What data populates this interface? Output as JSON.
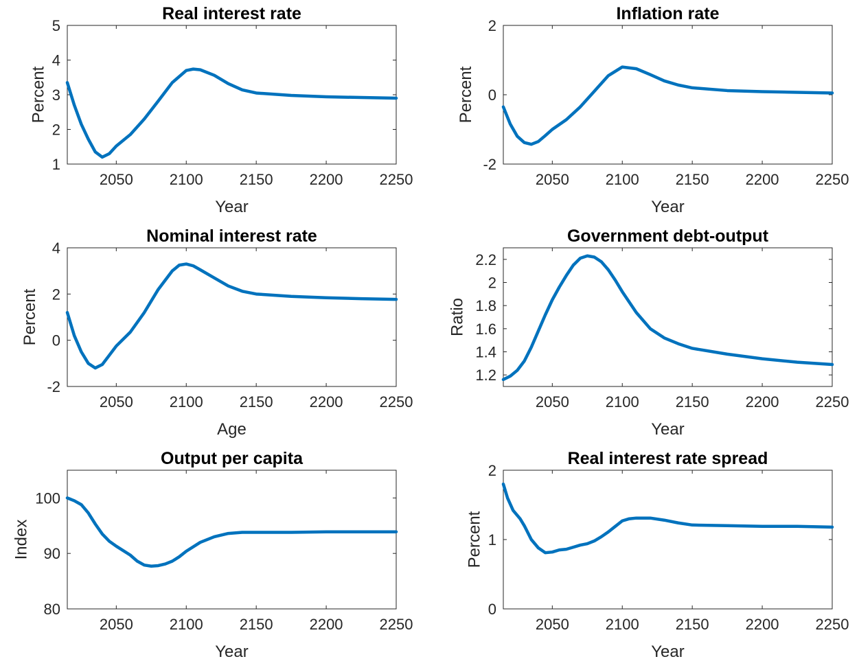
{
  "figure": {
    "line_color": "#0072BD"
  },
  "chart_data": [
    {
      "type": "line",
      "title": "Real interest rate",
      "xlabel": "Year",
      "ylabel": "Percent",
      "xlim": [
        2015,
        2250
      ],
      "ylim": [
        1,
        5
      ],
      "xticks": [
        2050,
        2100,
        2150,
        2200,
        2250
      ],
      "yticks": [
        1,
        2,
        3,
        4,
        5
      ],
      "grid": false,
      "series": [
        {
          "x": [
            2015,
            2020,
            2025,
            2030,
            2035,
            2040,
            2045,
            2050,
            2060,
            2070,
            2080,
            2090,
            2100,
            2105,
            2110,
            2120,
            2130,
            2140,
            2150,
            2175,
            2200,
            2225,
            2250
          ],
          "y": [
            3.35,
            2.7,
            2.15,
            1.72,
            1.35,
            1.2,
            1.3,
            1.52,
            1.85,
            2.3,
            2.82,
            3.35,
            3.7,
            3.74,
            3.72,
            3.56,
            3.32,
            3.14,
            3.05,
            2.98,
            2.94,
            2.92,
            2.9
          ]
        }
      ]
    },
    {
      "type": "line",
      "title": "Inflation rate",
      "xlabel": "Year",
      "ylabel": "Percent",
      "xlim": [
        2015,
        2250
      ],
      "ylim": [
        -2,
        2
      ],
      "xticks": [
        2050,
        2100,
        2150,
        2200,
        2250
      ],
      "yticks": [
        -2,
        0,
        2
      ],
      "grid": false,
      "series": [
        {
          "x": [
            2015,
            2020,
            2025,
            2030,
            2035,
            2040,
            2045,
            2050,
            2060,
            2070,
            2080,
            2090,
            2100,
            2110,
            2120,
            2130,
            2140,
            2150,
            2175,
            2200,
            2225,
            2250
          ],
          "y": [
            -0.35,
            -0.85,
            -1.2,
            -1.38,
            -1.43,
            -1.35,
            -1.18,
            -1.0,
            -0.72,
            -0.35,
            0.1,
            0.55,
            0.8,
            0.75,
            0.58,
            0.4,
            0.28,
            0.2,
            0.12,
            0.09,
            0.07,
            0.05
          ]
        }
      ]
    },
    {
      "type": "line",
      "title": "Nominal interest rate",
      "xlabel": "Age",
      "ylabel": "Percent",
      "xlim": [
        2015,
        2250
      ],
      "ylim": [
        -2,
        4
      ],
      "xticks": [
        2050,
        2100,
        2150,
        2200,
        2250
      ],
      "yticks": [
        -2,
        0,
        2,
        4
      ],
      "grid": false,
      "series": [
        {
          "x": [
            2015,
            2020,
            2025,
            2030,
            2035,
            2040,
            2045,
            2050,
            2060,
            2070,
            2080,
            2090,
            2095,
            2100,
            2105,
            2110,
            2120,
            2130,
            2140,
            2150,
            2175,
            2200,
            2225,
            2250
          ],
          "y": [
            1.2,
            0.2,
            -0.5,
            -1.0,
            -1.2,
            -1.05,
            -0.65,
            -0.25,
            0.35,
            1.2,
            2.2,
            3.0,
            3.25,
            3.3,
            3.22,
            3.05,
            2.7,
            2.35,
            2.12,
            2.0,
            1.9,
            1.84,
            1.8,
            1.77
          ]
        }
      ]
    },
    {
      "type": "line",
      "title": "Government debt-output",
      "xlabel": "Year",
      "ylabel": "Ratio",
      "xlim": [
        2015,
        2250
      ],
      "ylim": [
        1.1,
        2.3
      ],
      "xticks": [
        2050,
        2100,
        2150,
        2200,
        2250
      ],
      "yticks": [
        1.2,
        1.4,
        1.6,
        1.8,
        2,
        2.2
      ],
      "grid": false,
      "series": [
        {
          "x": [
            2015,
            2020,
            2025,
            2030,
            2035,
            2040,
            2045,
            2050,
            2055,
            2060,
            2065,
            2070,
            2075,
            2080,
            2085,
            2090,
            2095,
            2100,
            2110,
            2120,
            2130,
            2140,
            2150,
            2175,
            2200,
            2225,
            2250
          ],
          "y": [
            1.16,
            1.19,
            1.24,
            1.32,
            1.44,
            1.58,
            1.72,
            1.85,
            1.96,
            2.06,
            2.15,
            2.21,
            2.23,
            2.22,
            2.18,
            2.11,
            2.02,
            1.92,
            1.74,
            1.6,
            1.52,
            1.47,
            1.43,
            1.38,
            1.34,
            1.31,
            1.29
          ]
        }
      ]
    },
    {
      "type": "line",
      "title": "Output per capita",
      "xlabel": "Year",
      "ylabel": "Index",
      "xlim": [
        2015,
        2250
      ],
      "ylim": [
        80,
        105
      ],
      "xticks": [
        2050,
        2100,
        2150,
        2200,
        2250
      ],
      "yticks": [
        80,
        90,
        100
      ],
      "grid": false,
      "series": [
        {
          "x": [
            2015,
            2020,
            2025,
            2030,
            2035,
            2040,
            2045,
            2050,
            2060,
            2065,
            2070,
            2075,
            2080,
            2085,
            2090,
            2095,
            2100,
            2110,
            2120,
            2130,
            2140,
            2150,
            2175,
            2200,
            2225,
            2250
          ],
          "y": [
            100.0,
            99.5,
            98.8,
            97.3,
            95.3,
            93.5,
            92.2,
            91.3,
            89.7,
            88.6,
            87.9,
            87.7,
            87.8,
            88.1,
            88.6,
            89.4,
            90.4,
            92.0,
            93.0,
            93.6,
            93.8,
            93.8,
            93.8,
            93.9,
            93.9,
            93.9
          ]
        }
      ]
    },
    {
      "type": "line",
      "title": "Real interest rate spread",
      "xlabel": "Year",
      "ylabel": "Percent",
      "xlim": [
        2015,
        2250
      ],
      "ylim": [
        0,
        2
      ],
      "xticks": [
        2050,
        2100,
        2150,
        2200,
        2250
      ],
      "yticks": [
        0,
        1,
        2
      ],
      "grid": false,
      "series": [
        {
          "x": [
            2015,
            2018,
            2022,
            2027,
            2030,
            2035,
            2040,
            2045,
            2050,
            2055,
            2060,
            2065,
            2070,
            2075,
            2080,
            2085,
            2090,
            2095,
            2100,
            2105,
            2110,
            2120,
            2130,
            2140,
            2150,
            2175,
            2200,
            2225,
            2250
          ],
          "y": [
            1.8,
            1.6,
            1.42,
            1.3,
            1.2,
            1.0,
            0.88,
            0.81,
            0.82,
            0.85,
            0.86,
            0.89,
            0.92,
            0.94,
            0.98,
            1.04,
            1.11,
            1.19,
            1.27,
            1.3,
            1.31,
            1.31,
            1.28,
            1.24,
            1.21,
            1.2,
            1.19,
            1.19,
            1.18
          ]
        }
      ]
    }
  ]
}
